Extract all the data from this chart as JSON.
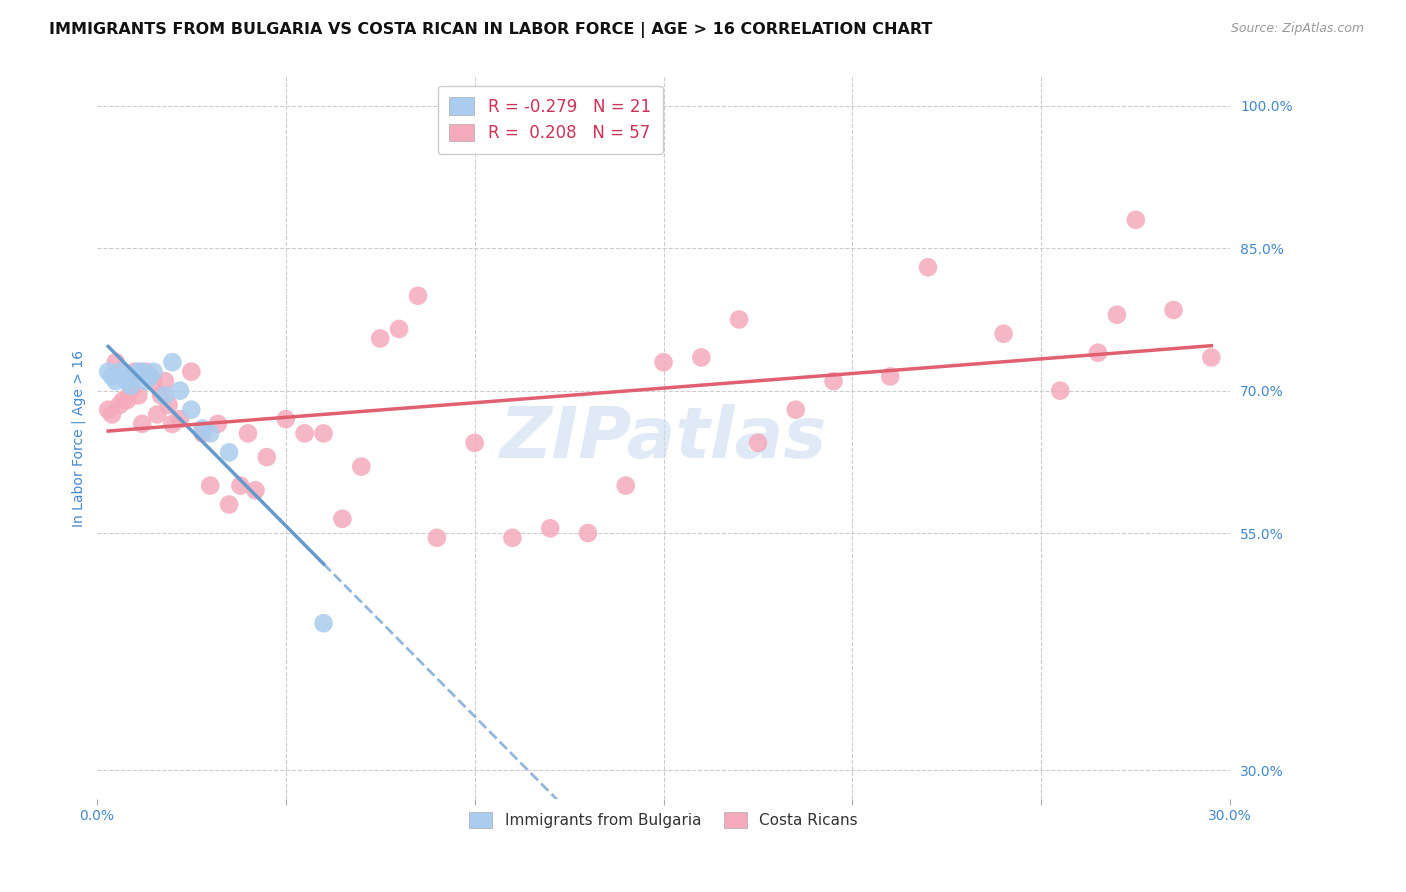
{
  "title": "IMMIGRANTS FROM BULGARIA VS COSTA RICAN IN LABOR FORCE | AGE > 16 CORRELATION CHART",
  "source": "Source: ZipAtlas.com",
  "ylabel": "In Labor Force | Age > 16",
  "xlim": [
    0.0,
    0.3
  ],
  "ylim": [
    0.27,
    1.03
  ],
  "x_ticks": [
    0.0,
    0.05,
    0.1,
    0.15,
    0.2,
    0.25,
    0.3
  ],
  "x_tick_labels": [
    "0.0%",
    "",
    "",
    "",
    "",
    "",
    "30.0%"
  ],
  "y_ticks": [
    0.3,
    0.55,
    0.7,
    0.85,
    1.0
  ],
  "y_tick_labels": [
    "30.0%",
    "55.0%",
    "70.0%",
    "85.0%",
    "100.0%"
  ],
  "bg_color": "#ffffff",
  "grid_color": "#cccccc",
  "bulgaria_color": "#aaccee",
  "costa_rica_color": "#f4aabb",
  "bulgaria_line_color": "#6699cc",
  "costa_rica_line_color": "#e06070",
  "bulgaria_R": "-0.279",
  "bulgaria_N": "21",
  "costa_rica_R": "0.208",
  "costa_rica_N": "57",
  "legend_text_color": "#cc3355",
  "legend_number_color": "#3366cc",
  "legend_label_bulgaria": "Immigrants from Bulgaria",
  "legend_label_costa_rica": "Costa Ricans",
  "bulgaria_points_x": [
    0.003,
    0.004,
    0.005,
    0.006,
    0.007,
    0.008,
    0.009,
    0.01,
    0.011,
    0.012,
    0.013,
    0.014,
    0.015,
    0.018,
    0.02,
    0.022,
    0.025,
    0.028,
    0.03,
    0.035,
    0.06
  ],
  "bulgaria_points_y": [
    0.72,
    0.715,
    0.71,
    0.72,
    0.715,
    0.71,
    0.705,
    0.715,
    0.72,
    0.72,
    0.71,
    0.715,
    0.72,
    0.695,
    0.73,
    0.7,
    0.68,
    0.66,
    0.655,
    0.635,
    0.455
  ],
  "costa_rica_points_x": [
    0.003,
    0.004,
    0.005,
    0.006,
    0.007,
    0.008,
    0.009,
    0.01,
    0.011,
    0.012,
    0.013,
    0.014,
    0.015,
    0.016,
    0.017,
    0.018,
    0.019,
    0.02,
    0.022,
    0.025,
    0.028,
    0.03,
    0.032,
    0.035,
    0.038,
    0.04,
    0.042,
    0.045,
    0.05,
    0.055,
    0.06,
    0.065,
    0.07,
    0.075,
    0.08,
    0.085,
    0.09,
    0.1,
    0.11,
    0.12,
    0.13,
    0.14,
    0.15,
    0.16,
    0.17,
    0.175,
    0.185,
    0.195,
    0.21,
    0.22,
    0.24,
    0.255,
    0.265,
    0.27,
    0.275,
    0.285,
    0.295
  ],
  "costa_rica_points_y": [
    0.68,
    0.675,
    0.73,
    0.685,
    0.69,
    0.69,
    0.7,
    0.72,
    0.695,
    0.665,
    0.72,
    0.715,
    0.71,
    0.675,
    0.695,
    0.71,
    0.685,
    0.665,
    0.67,
    0.72,
    0.655,
    0.6,
    0.665,
    0.58,
    0.6,
    0.655,
    0.595,
    0.63,
    0.67,
    0.655,
    0.655,
    0.565,
    0.62,
    0.755,
    0.765,
    0.8,
    0.545,
    0.645,
    0.545,
    0.555,
    0.55,
    0.6,
    0.73,
    0.735,
    0.775,
    0.645,
    0.68,
    0.71,
    0.715,
    0.83,
    0.76,
    0.7,
    0.74,
    0.78,
    0.88,
    0.785,
    0.735
  ],
  "watermark": "ZIPatlas",
  "title_fontsize": 11.5,
  "tick_color": "#4488cc",
  "watermark_color": "#ccddf0"
}
